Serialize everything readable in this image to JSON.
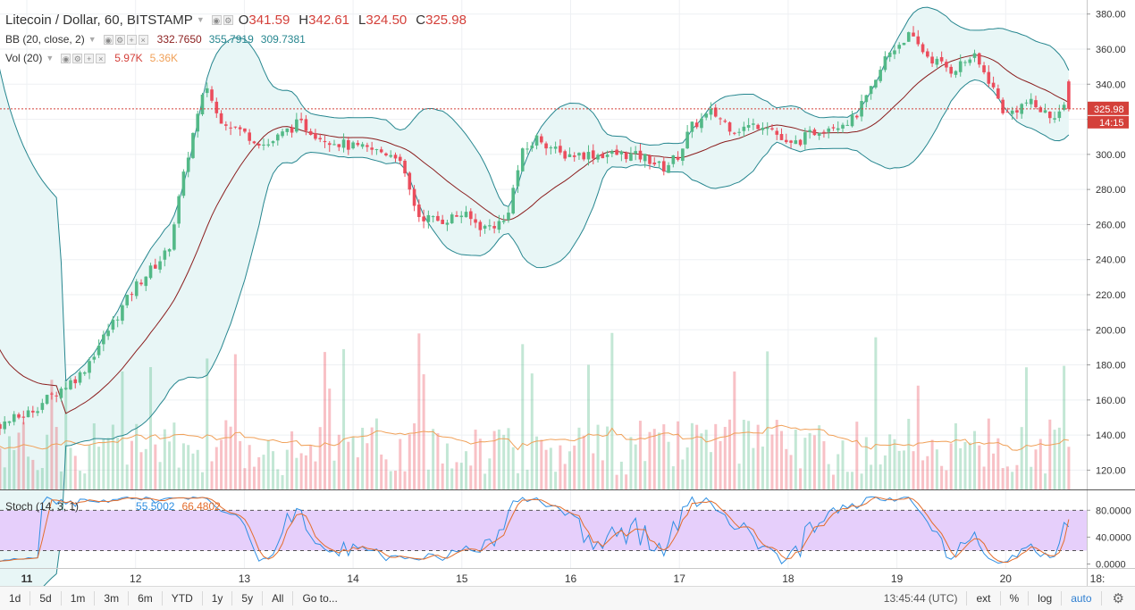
{
  "header": {
    "symbol": "Litecoin / Dollar, 60, BITSTAMP",
    "dropdown": "▼",
    "o_key": "O",
    "o_val": "341.59",
    "h_key": "H",
    "h_val": "342.61",
    "l_key": "L",
    "l_val": "324.50",
    "c_key": "C",
    "c_val": "325.98"
  },
  "bb_legend": {
    "label": "BB (20, close, 2)",
    "basis": "332.7650",
    "upper": "355.7919",
    "lower": "309.7381"
  },
  "vol_legend": {
    "label": "Vol (20)",
    "volume": "5.97K",
    "ma": "5.36K"
  },
  "stoch_legend": {
    "label": "Stoch (14, 3, 1)",
    "k": "55.5002",
    "d": "66.4802"
  },
  "price_axis": {
    "ticks": [
      "380.00",
      "360.00",
      "340.00",
      "320.00",
      "300.00",
      "280.00",
      "260.00",
      "240.00",
      "220.00",
      "200.00",
      "180.00",
      "160.00",
      "140.00",
      "120.00"
    ]
  },
  "last_price_label": "325.98",
  "countdown_label": "14:15",
  "stoch_axis": {
    "ticks": [
      "80.0000",
      "40.0000",
      "0.0000"
    ]
  },
  "time_axis": {
    "labels": [
      "11",
      "12",
      "13",
      "14",
      "15",
      "16",
      "17",
      "18",
      "19",
      "20",
      "18:"
    ]
  },
  "bottom_bar": {
    "ranges": [
      "1d",
      "5d",
      "1m",
      "3m",
      "6m",
      "YTD",
      "1y",
      "5y",
      "All"
    ],
    "goto": "Go to...",
    "time": "13:45:44 (UTC)",
    "ext": "ext",
    "pct": "%",
    "log": "log",
    "auto": "auto",
    "settings_icon": "gear-icon"
  },
  "colors": {
    "up": "#53b987",
    "down": "#eb4d5c",
    "bb_band": "#26868f",
    "bb_basis": "#8b1e1e",
    "bb_fill": "#e8f6f6",
    "vol_ma": "#f0a058",
    "stoch_k": "#2f8fe3",
    "stoch_d": "#e36d2c",
    "stoch_bg": "#e6cffb",
    "price_line": "#d4403a"
  },
  "chart_data": {
    "type": "candlestick",
    "title": "Litecoin / Dollar, 60, BITSTAMP",
    "ohlc_last": {
      "open": 341.59,
      "high": 342.61,
      "low": 324.5,
      "close": 325.98
    },
    "price_range": [
      109,
      388
    ],
    "time_labels": [
      "11",
      "12",
      "13",
      "14",
      "15",
      "16",
      "17",
      "18",
      "19",
      "20",
      "18:"
    ],
    "close_path": [
      [
        10.5,
        140
      ],
      [
        11.0,
        152
      ],
      [
        11.5,
        175
      ],
      [
        11.8,
        205
      ],
      [
        12.0,
        225
      ],
      [
        12.3,
        245
      ],
      [
        12.5,
        305
      ],
      [
        12.65,
        340
      ],
      [
        12.75,
        322
      ],
      [
        13.0,
        312
      ],
      [
        13.2,
        305
      ],
      [
        13.5,
        318
      ],
      [
        13.7,
        310
      ],
      [
        14.0,
        304
      ],
      [
        14.4,
        300
      ],
      [
        14.6,
        265
      ],
      [
        14.8,
        262
      ],
      [
        15.0,
        266
      ],
      [
        15.2,
        258
      ],
      [
        15.4,
        262
      ],
      [
        15.55,
        300
      ],
      [
        15.7,
        310
      ],
      [
        15.9,
        300
      ],
      [
        16.2,
        300
      ],
      [
        16.5,
        300
      ],
      [
        16.7,
        298
      ],
      [
        16.85,
        292
      ],
      [
        17.0,
        300
      ],
      [
        17.1,
        315
      ],
      [
        17.3,
        324
      ],
      [
        17.5,
        314
      ],
      [
        17.8,
        318
      ],
      [
        18.0,
        304
      ],
      [
        18.3,
        315
      ],
      [
        18.6,
        320
      ],
      [
        18.8,
        340
      ],
      [
        18.9,
        356
      ],
      [
        19.1,
        368
      ],
      [
        19.3,
        355
      ],
      [
        19.5,
        348
      ],
      [
        19.7,
        356
      ],
      [
        19.85,
        342
      ],
      [
        20.0,
        322
      ],
      [
        20.2,
        330
      ],
      [
        20.4,
        322
      ],
      [
        20.55,
        326
      ]
    ],
    "volume_units": "K",
    "volume_note": "bars scaled to the 120-140 region of the price axis",
    "bb_settings": "BB (20, close, 2)",
    "bb_values": {
      "basis": 332.765,
      "upper": 355.7919,
      "lower": 309.7381
    },
    "vol_settings": "Vol (20)",
    "vol_values": {
      "volume": "5.97K",
      "ma": "5.36K"
    },
    "stoch_settings": "Stoch (14, 3, 1)",
    "stoch_values": {
      "k": 55.5002,
      "d": 66.4802
    },
    "stoch_levels": [
      80,
      20
    ],
    "stoch_range": [
      -6,
      111
    ]
  }
}
